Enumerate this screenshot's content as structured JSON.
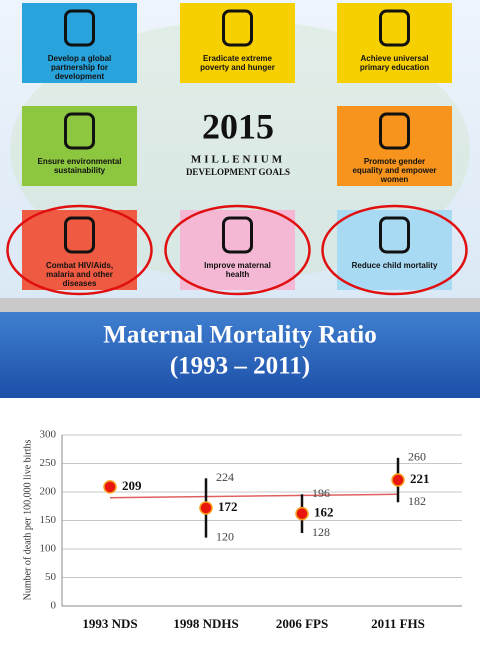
{
  "goals": [
    {
      "label": "Develop a global partnership for development",
      "color": "#29a3dc"
    },
    {
      "label": "Eradicate extreme poverty and hunger",
      "color": "#f6d000"
    },
    {
      "label": "Achieve universal primary education",
      "color": "#f6d000"
    },
    {
      "label": "Ensure environmental sustainability",
      "color": "#8dc63f"
    },
    {
      "label": "Promote gender equality and empower women",
      "color": "#f7941d"
    },
    {
      "label": "Combat HIV/Aids, malaria and other diseases",
      "color": "#ef5a42"
    },
    {
      "label": "Improve maternal health",
      "color": "#f4b8d4"
    },
    {
      "label": "Reduce child mortality",
      "color": "#a9daf3"
    }
  ],
  "center": {
    "year": "2015",
    "line1": "MILLENIUM",
    "line2": "DEVELOPMENT GOALS"
  },
  "chart_data": {
    "type": "errorbar",
    "title": "Maternal Mortality Ratio",
    "subtitle": "(1993 – 2011)",
    "y_label": "Number of death per 100,000 live births",
    "categories": [
      "1993 NDS",
      "1998 NDHS",
      "2006 FPS",
      "2011 FHS"
    ],
    "values": [
      209,
      172,
      162,
      221
    ],
    "upper": [
      null,
      224,
      196,
      260
    ],
    "lower": [
      null,
      120,
      128,
      182
    ],
    "color": "#e8160c",
    "trend": [
      190,
      196
    ],
    "trend_color": "#e06060",
    "ylim": [
      0,
      300
    ],
    "yticks": [
      0,
      50,
      100,
      150,
      200,
      250,
      300
    ],
    "grid": true
  }
}
